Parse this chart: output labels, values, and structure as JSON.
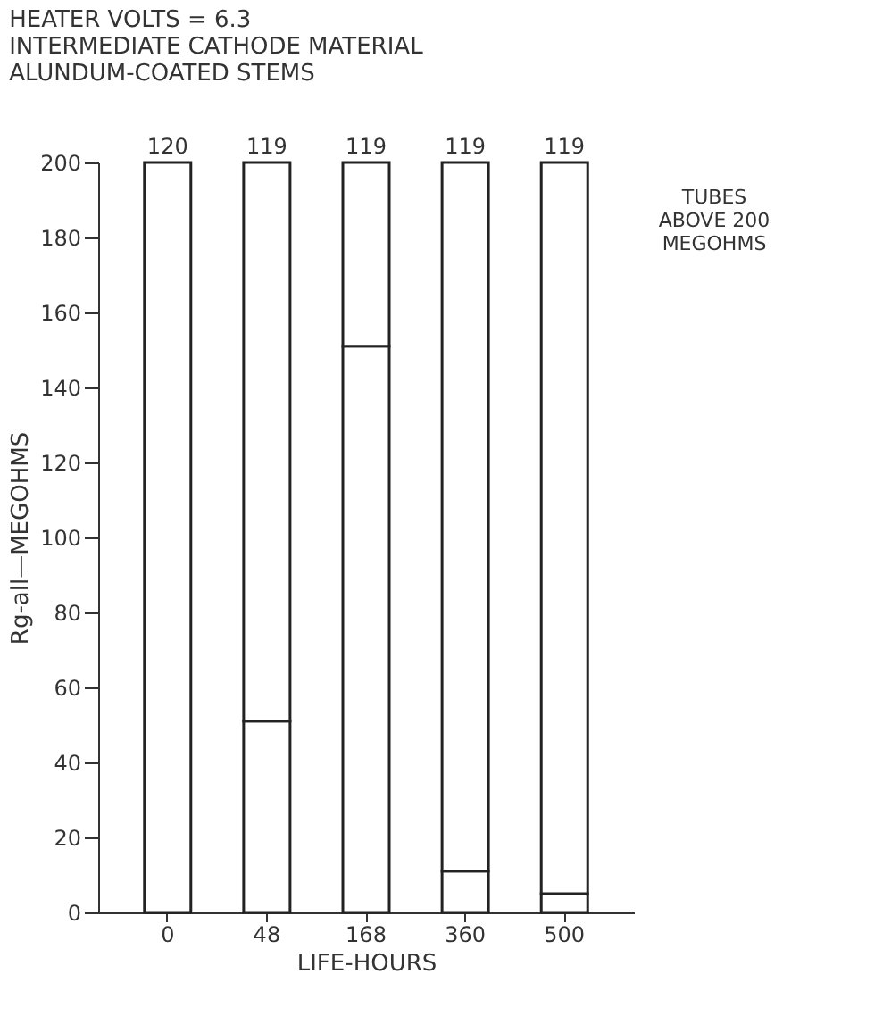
{
  "chart_data": {
    "type": "bar",
    "title": "HEATER VOLTS = 6.3\nINTERMEDIATE CATHODE MATERIAL\nALUNDUM-COATED STEMS",
    "xlabel": "LIFE-HOURS",
    "ylabel": "Rg-all—MEGOHMS",
    "categories": [
      "0",
      "48",
      "168",
      "360",
      "500"
    ],
    "stacked": true,
    "series": [
      {
        "color": "#ffffff",
        "values": [
          0,
          51,
          151,
          11,
          5
        ]
      },
      {
        "color": "#ffffff",
        "values": [
          200,
          149,
          49,
          189,
          195
        ]
      }
    ],
    "annotations": [
      {
        "text": "120",
        "x": "0",
        "y": 200
      },
      {
        "text": "119",
        "x": "48",
        "y": 200
      },
      {
        "text": "119",
        "x": "168",
        "y": 200
      },
      {
        "text": "119",
        "x": "360",
        "y": 200
      },
      {
        "text": "119",
        "x": "500",
        "y": 200
      },
      "TUBES\nABOVE 200\nMEGOHMS"
    ],
    "ylim": [
      0,
      200
    ],
    "yticks": [
      0,
      20,
      40,
      60,
      80,
      100,
      120,
      140,
      160,
      180,
      200
    ],
    "grid": false
  }
}
